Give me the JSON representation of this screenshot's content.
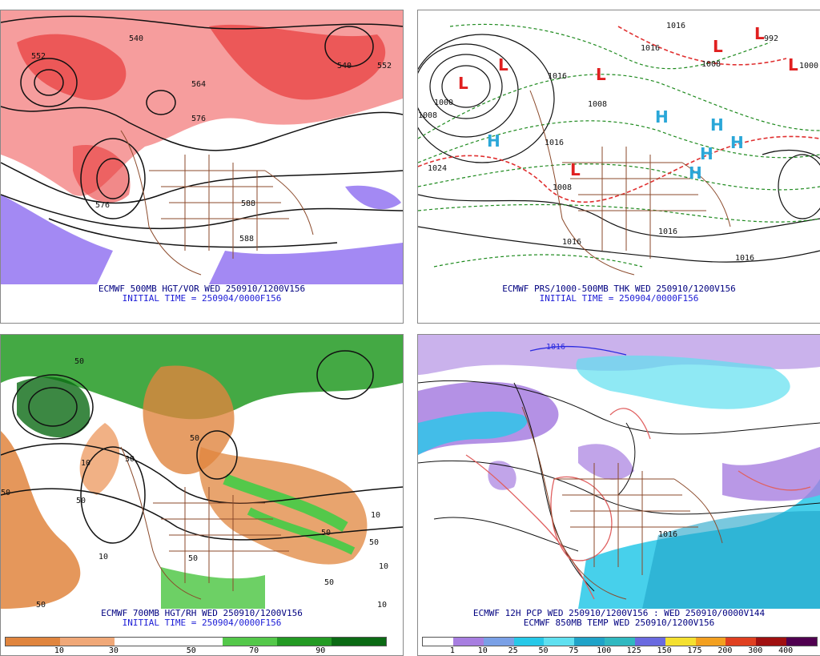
{
  "panels": {
    "p1": {
      "title": "ECMWF 500MB HGT/VOR WED 250910/1200V156",
      "init": "INITIAL TIME = 250904/0000F156",
      "contour_labels": [
        "552",
        "540",
        "564",
        "576",
        "540",
        "552",
        "576",
        "588",
        "588"
      ]
    },
    "p2": {
      "title": "ECMWF PRS/1000-500MB THK WED 250910/1200V156",
      "init": "INITIAL TIME = 250904/0000F156",
      "contour_labels": [
        "1016",
        "992",
        "1000",
        "1008",
        "1016",
        "1008",
        "1024",
        "1016",
        "1008",
        "1016",
        "1016",
        "1016",
        "1016",
        "1008",
        "1000"
      ],
      "high_symbol": "H",
      "low_symbol": "L"
    },
    "p3": {
      "title": "ECMWF 700MB HGT/RH WED 250910/1200V156",
      "init": "INITIAL TIME = 250904/0000F156",
      "contour_labels": [
        "50",
        "10",
        "50",
        "30",
        "50",
        "10",
        "50",
        "50",
        "50",
        "10",
        "50",
        "10",
        "50",
        "10",
        "50"
      ],
      "legend_ticks": [
        "10",
        "30",
        "50",
        "70",
        "90"
      ],
      "legend_colors": [
        "#e0853e",
        "#f0a878",
        "#ffffff",
        "#ffffff",
        "#54c84a",
        "#239a23",
        "#0b6a14"
      ]
    },
    "p4": {
      "title": "ECMWF 12H PCP WED 250910/1200V156 : WED 250910/0000V144",
      "subtitle": "ECMWF 850MB TEMP WED 250910/1200V156",
      "contour_labels": [
        "1016",
        "1016"
      ],
      "legend_ticks": [
        "1",
        "10",
        "25",
        "50",
        "75",
        "100",
        "125",
        "150",
        "175",
        "200",
        "300",
        "400"
      ],
      "legend_colors": [
        "#ffffff",
        "#a77ee0",
        "#7aa0e6",
        "#27c8e8",
        "#5fe0f0",
        "#1fa3c8",
        "#30b8c0",
        "#6a6ae0",
        "#f4e030",
        "#f3a020",
        "#e04020",
        "#a01010",
        "#500050"
      ]
    }
  }
}
